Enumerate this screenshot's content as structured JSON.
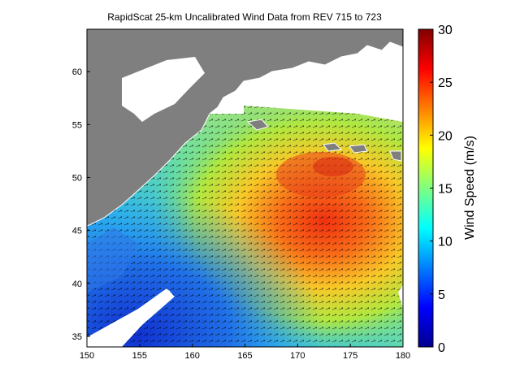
{
  "title": "RapidScat 25-km Uncalibrated Wind Data from REV 715 to 723",
  "map": {
    "x_ticks": [
      "150",
      "155",
      "160",
      "165",
      "170",
      "175",
      "180"
    ],
    "y_ticks": [
      "35",
      "40",
      "45",
      "50",
      "55",
      "60"
    ],
    "x_range": [
      150,
      180
    ],
    "y_range": [
      34,
      64
    ],
    "land_color": "#7f7f7f",
    "no_data_color": "#ffffff"
  },
  "colorbar": {
    "label": "Wind Speed (m/s)",
    "ticks": [
      "0",
      "5",
      "10",
      "15",
      "20",
      "25",
      "30"
    ],
    "range": [
      0,
      30
    ],
    "colormap": "jet"
  }
}
